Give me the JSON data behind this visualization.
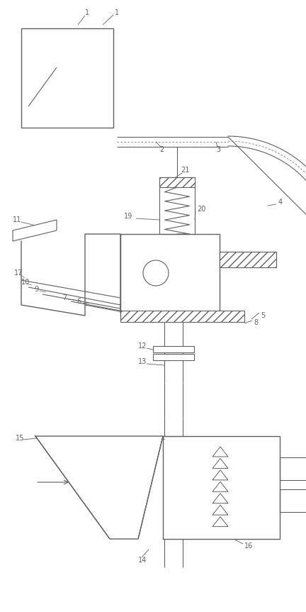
{
  "fig_width": 4.32,
  "fig_height": 8.63,
  "dpi": 100,
  "bg_color": "#ffffff",
  "line_color": "#606060",
  "lw": 0.8,
  "lw_thick": 1.0,
  "xlim": [
    0,
    432
  ],
  "ylim": [
    0,
    863
  ]
}
